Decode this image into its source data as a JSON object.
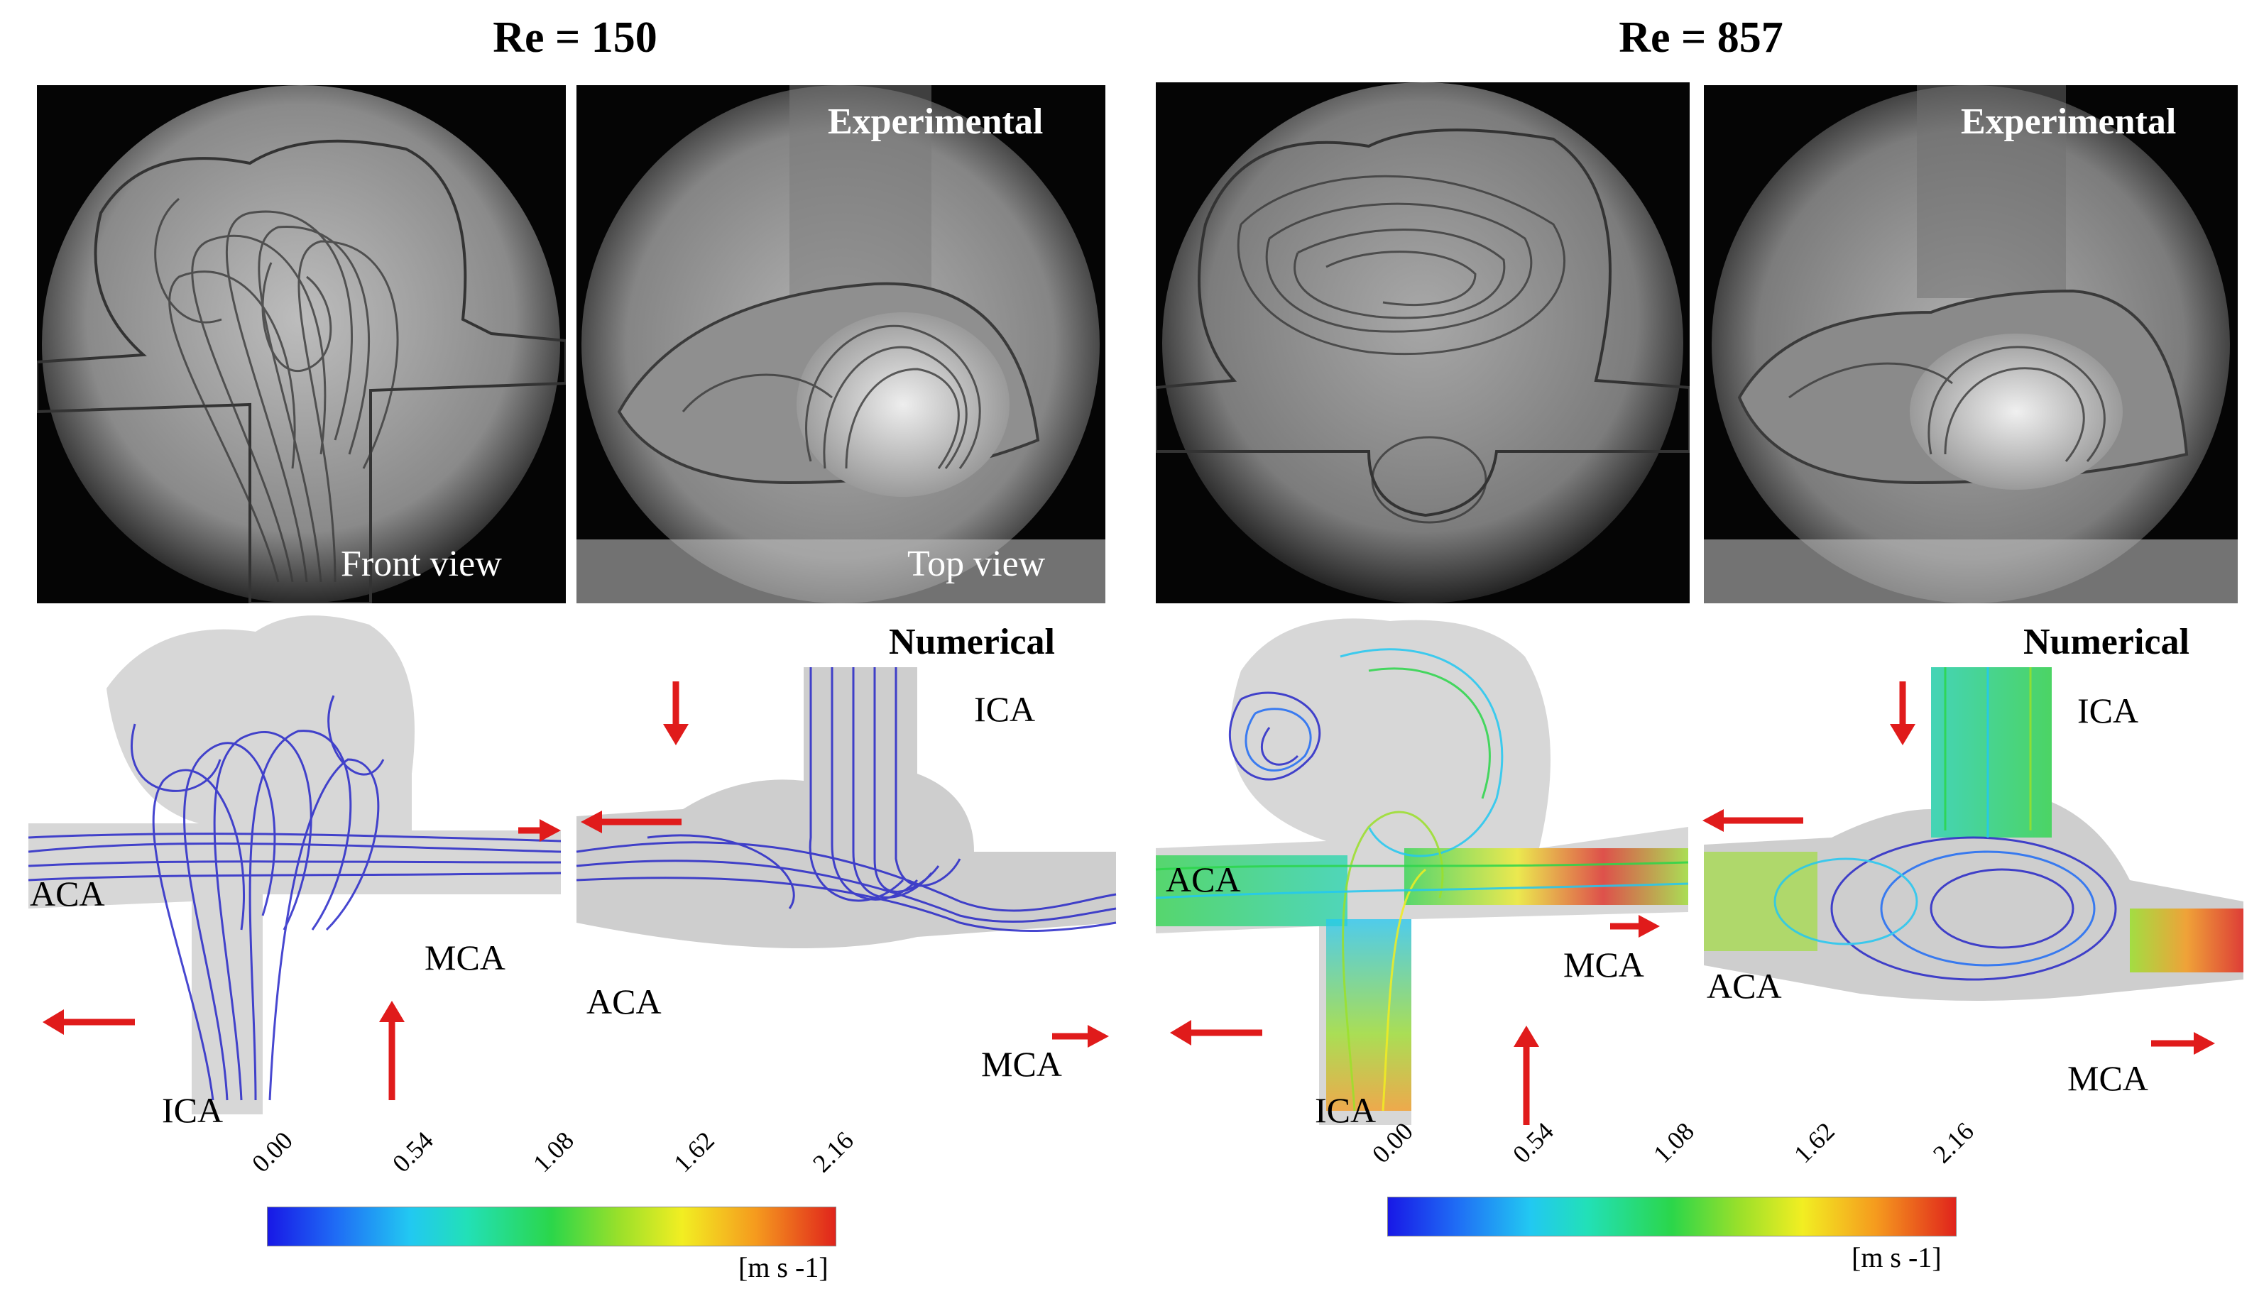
{
  "panels": {
    "left": {
      "title": "Re = 150",
      "experimental": {
        "heading": "Experimental",
        "front_caption": "Front view",
        "top_caption": "Top view"
      },
      "numerical": {
        "heading": "Numerical",
        "front": {
          "aca": "ACA",
          "mca": "MCA",
          "ica": "ICA"
        },
        "top": {
          "aca": "ACA",
          "mca": "MCA",
          "ica": "ICA"
        }
      },
      "colorbar": {
        "ticks": [
          "0.00",
          "0.54",
          "1.08",
          "1.62",
          "2.16"
        ],
        "unit": "[m s -1]"
      }
    },
    "right": {
      "title": "Re = 857",
      "experimental": {
        "heading": "Experimental"
      },
      "numerical": {
        "heading": "Numerical",
        "front": {
          "aca": "ACA",
          "mca": "MCA",
          "ica": "ICA"
        },
        "top": {
          "aca": "ACA",
          "mca": "MCA",
          "ica": "ICA"
        }
      },
      "colorbar": {
        "ticks": [
          "0.00",
          "0.54",
          "1.08",
          "1.62",
          "2.16"
        ],
        "unit": "[m s -1]"
      }
    }
  },
  "colors": {
    "arrow": "#e01b1b",
    "streamline_low": "#2a2ad8",
    "vessel_shadow": "#c8c8c8"
  }
}
